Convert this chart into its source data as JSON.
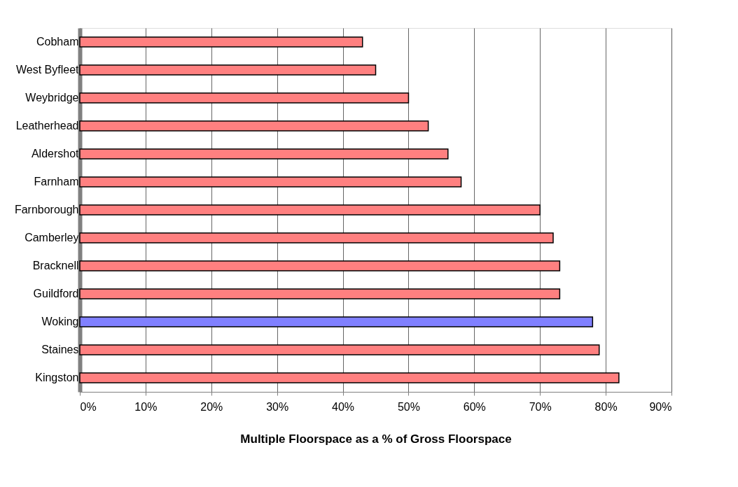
{
  "chart_data": {
    "type": "bar",
    "orientation": "horizontal",
    "xlabel": "Multiple Floorspace as a % of Gross Floorspace",
    "categories": [
      "Cobham",
      "West Byfleet",
      "Weybridge",
      "Leatherhead",
      "Aldershot",
      "Farnham",
      "Farnborough",
      "Camberley",
      "Bracknell",
      "Guildford",
      "Woking",
      "Staines",
      "Kingston"
    ],
    "values": [
      43,
      45,
      50,
      53,
      56,
      58,
      70,
      72,
      73,
      73,
      78,
      79,
      82
    ],
    "colors": [
      "#ff8080",
      "#ff8080",
      "#ff8080",
      "#ff8080",
      "#ff8080",
      "#ff8080",
      "#ff8080",
      "#ff8080",
      "#ff8080",
      "#ff8080",
      "#8080ff",
      "#ff8080",
      "#ff8080"
    ],
    "xlim": [
      0,
      90
    ],
    "xticks": [
      {
        "value": 0,
        "label": "0%"
      },
      {
        "value": 10,
        "label": "10%"
      },
      {
        "value": 20,
        "label": "20%"
      },
      {
        "value": 30,
        "label": "30%"
      },
      {
        "value": 40,
        "label": "40%"
      },
      {
        "value": 50,
        "label": "50%"
      },
      {
        "value": 60,
        "label": "60%"
      },
      {
        "value": 70,
        "label": "70%"
      },
      {
        "value": 80,
        "label": "80%"
      },
      {
        "value": 90,
        "label": "90%"
      }
    ],
    "grid": "x"
  }
}
